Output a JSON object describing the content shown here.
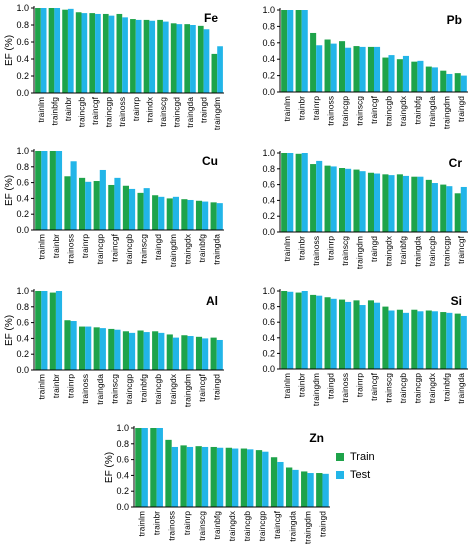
{
  "colors": {
    "train": "#1ea34a",
    "test": "#22b5e8"
  },
  "legend": {
    "train": "Train",
    "test": "Test"
  },
  "chart_data": [
    {
      "type": "bar",
      "title": "Fe",
      "ylabel": "EF (%)",
      "ylim": [
        0,
        1.0
      ],
      "yticks": [
        "0.0",
        "0.2",
        "0.4",
        "0.6",
        "0.8",
        "1.0"
      ],
      "grid": false,
      "categories": [
        "trainlm",
        "trainbfg",
        "trainbr",
        "traincgb",
        "traincgf",
        "traincgp",
        "trainoss",
        "trainrp",
        "traindx",
        "trainscg",
        "traincgd",
        "traingda",
        "traingd",
        "traingdm"
      ],
      "series": [
        {
          "name": "Train",
          "values": [
            1.0,
            1.0,
            0.98,
            0.95,
            0.94,
            0.93,
            0.93,
            0.87,
            0.86,
            0.86,
            0.82,
            0.81,
            0.79,
            0.46
          ]
        },
        {
          "name": "Test",
          "values": [
            1.0,
            1.0,
            0.99,
            0.94,
            0.93,
            0.91,
            0.89,
            0.86,
            0.85,
            0.84,
            0.81,
            0.8,
            0.75,
            0.55
          ]
        }
      ]
    },
    {
      "type": "bar",
      "title": "Pb",
      "ylabel": "",
      "ylim": [
        0,
        1.0
      ],
      "yticks": [
        "0.0",
        "0.2",
        "0.4",
        "0.6",
        "0.8",
        "1.0"
      ],
      "grid": false,
      "categories": [
        "trainlm",
        "trainbr",
        "trainrp",
        "trainoss",
        "traincgp",
        "trainscg",
        "traincgf",
        "traincgb",
        "traingdx",
        "trainbfg",
        "traingda",
        "traingdm",
        "traingd"
      ],
      "series": [
        {
          "name": "Train",
          "values": [
            1.0,
            1.0,
            0.72,
            0.64,
            0.62,
            0.56,
            0.55,
            0.42,
            0.4,
            0.37,
            0.31,
            0.26,
            0.23
          ]
        },
        {
          "name": "Test",
          "values": [
            1.0,
            1.0,
            0.57,
            0.59,
            0.54,
            0.55,
            0.55,
            0.45,
            0.44,
            0.38,
            0.3,
            0.22,
            0.2
          ]
        }
      ]
    },
    {
      "type": "bar",
      "title": "Cu",
      "ylabel": "EF (%)",
      "ylim": [
        0,
        1.0
      ],
      "yticks": [
        "0.0",
        "0.2",
        "0.4",
        "0.6",
        "0.8",
        "1.0"
      ],
      "grid": false,
      "categories": [
        "trainlm",
        "trainbr",
        "trainoss",
        "trainrp",
        "traincgp",
        "traincgf",
        "traincgb",
        "trainscg",
        "traingd",
        "traingdm",
        "traingdx",
        "trainbfg",
        "traingda"
      ],
      "series": [
        {
          "name": "Train",
          "values": [
            1.0,
            1.0,
            0.68,
            0.66,
            0.62,
            0.57,
            0.56,
            0.47,
            0.44,
            0.4,
            0.39,
            0.37,
            0.35
          ]
        },
        {
          "name": "Test",
          "values": [
            1.0,
            1.0,
            0.87,
            0.61,
            0.76,
            0.66,
            0.52,
            0.53,
            0.42,
            0.42,
            0.38,
            0.36,
            0.34
          ]
        }
      ]
    },
    {
      "type": "bar",
      "title": "Cr",
      "ylabel": "",
      "ylim": [
        0,
        1.0
      ],
      "yticks": [
        "0.0",
        "0.2",
        "0.4",
        "0.6",
        "0.8",
        "1.0"
      ],
      "grid": false,
      "categories": [
        "trainlm",
        "trainbr",
        "trainoss",
        "trainrp",
        "trainscg",
        "traingdm",
        "traingd",
        "traingdx",
        "trainbfg",
        "traingda",
        "traincgb",
        "traincgp",
        "traincgf"
      ],
      "series": [
        {
          "name": "Train",
          "values": [
            1.0,
            0.99,
            0.86,
            0.84,
            0.81,
            0.79,
            0.75,
            0.73,
            0.73,
            0.7,
            0.66,
            0.6,
            0.49
          ]
        },
        {
          "name": "Test",
          "values": [
            1.0,
            1.0,
            0.9,
            0.83,
            0.8,
            0.77,
            0.74,
            0.72,
            0.71,
            0.7,
            0.62,
            0.58,
            0.57
          ]
        }
      ]
    },
    {
      "type": "bar",
      "title": "Al",
      "ylabel": "EF (%)",
      "ylim": [
        0,
        1.0
      ],
      "yticks": [
        "0.0",
        "0.2",
        "0.4",
        "0.6",
        "0.8",
        "1.0"
      ],
      "grid": false,
      "categories": [
        "trainlm",
        "trainbr",
        "trainrp",
        "trainoss",
        "traingda",
        "trainscg",
        "traincgp",
        "trainbfg",
        "traincgb",
        "traingdx",
        "traingdm",
        "traincgf",
        "traingd"
      ],
      "series": [
        {
          "name": "Train",
          "values": [
            1.0,
            0.98,
            0.63,
            0.55,
            0.54,
            0.52,
            0.49,
            0.5,
            0.49,
            0.45,
            0.44,
            0.42,
            0.41
          ]
        },
        {
          "name": "Test",
          "values": [
            1.0,
            1.0,
            0.62,
            0.55,
            0.53,
            0.51,
            0.47,
            0.48,
            0.47,
            0.41,
            0.43,
            0.4,
            0.38
          ]
        }
      ]
    },
    {
      "type": "bar",
      "title": "Si",
      "ylabel": "",
      "ylim": [
        0,
        1.0
      ],
      "yticks": [
        "0.0",
        "0.2",
        "0.4",
        "0.6",
        "0.8",
        "1.0"
      ],
      "grid": false,
      "categories": [
        "trainlm",
        "trainbr",
        "traingdm",
        "traingd",
        "trainoss",
        "trainrp",
        "traincgf",
        "trainscg",
        "traincgb",
        "traincgp",
        "traingdx",
        "trainbfg",
        "traingda"
      ],
      "series": [
        {
          "name": "Train",
          "values": [
            1.0,
            0.98,
            0.95,
            0.92,
            0.89,
            0.88,
            0.88,
            0.8,
            0.76,
            0.76,
            0.75,
            0.73,
            0.71
          ]
        },
        {
          "name": "Test",
          "values": [
            0.99,
            1.0,
            0.94,
            0.9,
            0.86,
            0.82,
            0.85,
            0.75,
            0.72,
            0.74,
            0.74,
            0.72,
            0.68
          ]
        }
      ]
    },
    {
      "type": "bar",
      "title": "Zn",
      "ylabel": "EF (%)",
      "ylim": [
        0,
        1.0
      ],
      "yticks": [
        "0.0",
        "0.2",
        "0.4",
        "0.6",
        "0.8",
        "1.0"
      ],
      "grid": false,
      "categories": [
        "trainlm",
        "trainbr",
        "trainoss",
        "trainrp",
        "trainscg",
        "trainbfg",
        "traingdx",
        "traincgb",
        "traincgp",
        "traincgf",
        "traingda",
        "traingdm",
        "traingd"
      ],
      "series": [
        {
          "name": "Train",
          "values": [
            1.0,
            1.0,
            0.85,
            0.78,
            0.77,
            0.76,
            0.75,
            0.74,
            0.72,
            0.63,
            0.5,
            0.45,
            0.43
          ]
        },
        {
          "name": "Test",
          "values": [
            1.0,
            1.0,
            0.76,
            0.76,
            0.76,
            0.75,
            0.74,
            0.73,
            0.7,
            0.57,
            0.47,
            0.43,
            0.42
          ]
        }
      ]
    }
  ]
}
